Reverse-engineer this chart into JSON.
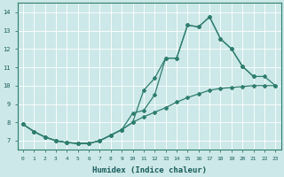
{
  "title": "",
  "xlabel": "Humidex (Indice chaleur)",
  "ylabel": "",
  "background_color": "#cce8e8",
  "grid_color": "#b8d8d8",
  "line_color": "#2e7d6e",
  "xlim": [
    -0.5,
    23.5
  ],
  "ylim": [
    6.5,
    14.5
  ],
  "yticks": [
    7,
    8,
    9,
    10,
    11,
    12,
    13,
    14
  ],
  "xticks": [
    0,
    1,
    2,
    3,
    4,
    5,
    6,
    7,
    8,
    9,
    10,
    11,
    12,
    13,
    14,
    15,
    16,
    17,
    18,
    19,
    20,
    21,
    22,
    23
  ],
  "curve_top_x": [
    0,
    1,
    2,
    3,
    4,
    5,
    6,
    7,
    8,
    9,
    10,
    11,
    12,
    13,
    14,
    15,
    16,
    17,
    18,
    19,
    20,
    21
  ],
  "curve_top_y": [
    7.9,
    7.5,
    7.2,
    7.0,
    6.9,
    6.85,
    6.85,
    7.0,
    7.3,
    7.6,
    8.5,
    8.65,
    9.5,
    11.5,
    11.5,
    13.3,
    13.2,
    13.75,
    12.55,
    12.0,
    11.05,
    10.5
  ],
  "curve_mid_x": [
    0,
    1,
    2,
    3,
    4,
    5,
    6,
    7,
    8,
    9,
    10,
    11,
    12,
    13,
    14,
    15,
    16,
    17,
    18,
    19,
    20,
    21,
    22,
    23
  ],
  "curve_mid_y": [
    7.9,
    7.5,
    7.2,
    7.0,
    6.9,
    6.85,
    6.85,
    7.0,
    7.3,
    7.6,
    8.0,
    9.75,
    10.4,
    11.5,
    11.5,
    13.3,
    13.2,
    13.75,
    12.55,
    12.0,
    11.05,
    10.5,
    10.5,
    10.0
  ],
  "curve_bot_x": [
    0,
    1,
    2,
    3,
    4,
    5,
    6,
    7,
    8,
    9,
    10,
    11,
    12,
    13,
    14,
    15,
    16,
    17,
    18,
    19,
    20,
    21,
    22,
    23
  ],
  "curve_bot_y": [
    7.9,
    7.5,
    7.2,
    7.0,
    6.9,
    6.85,
    6.85,
    7.0,
    7.3,
    7.6,
    8.0,
    8.3,
    8.55,
    8.8,
    9.1,
    9.35,
    9.55,
    9.75,
    9.85,
    9.9,
    9.95,
    10.0,
    10.0,
    10.0
  ]
}
